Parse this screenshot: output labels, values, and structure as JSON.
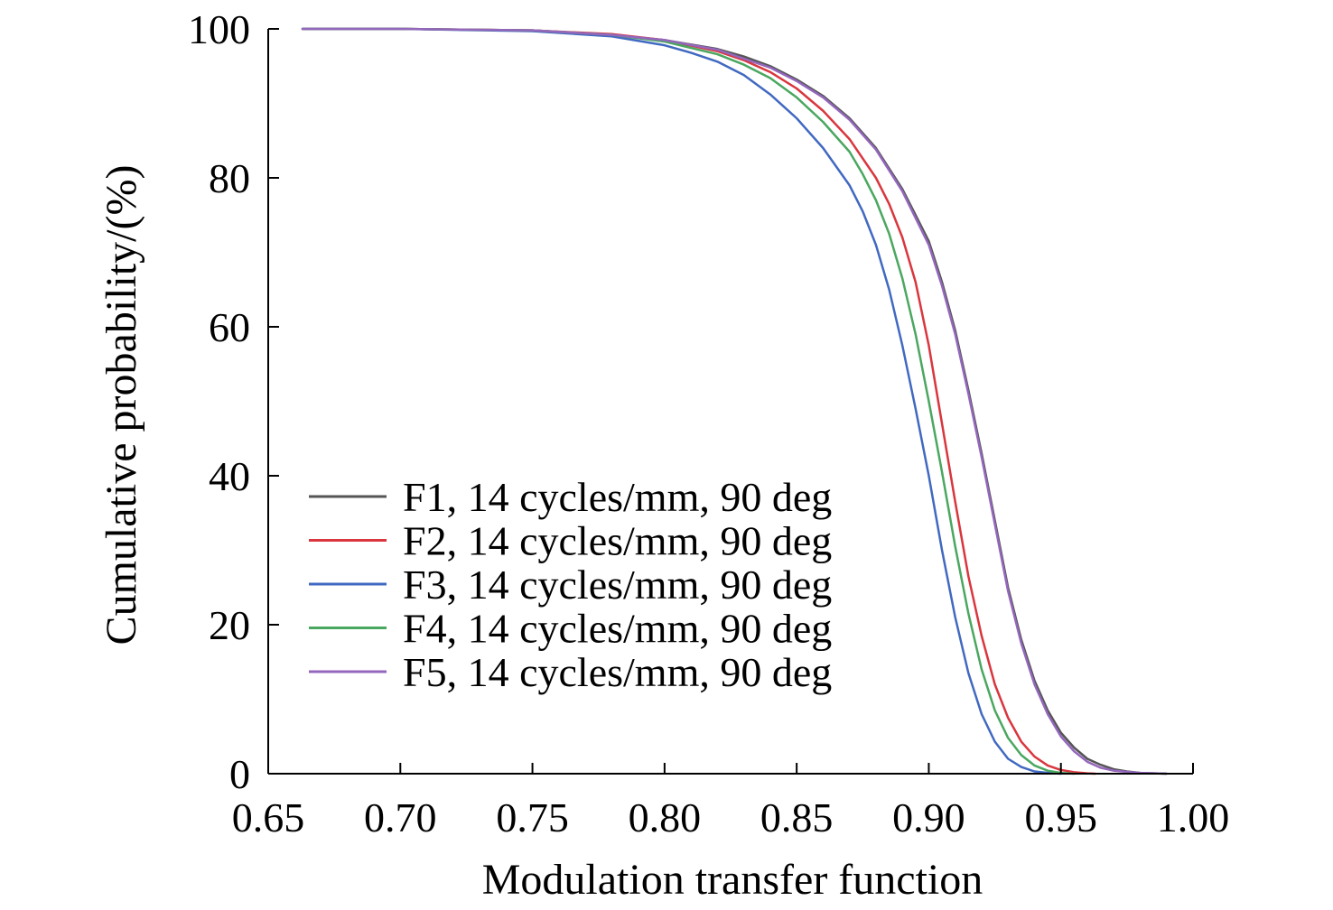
{
  "chart_data": {
    "type": "line",
    "title": "",
    "xlabel": "Modulation transfer function",
    "ylabel": "Cumulative probability/(%)",
    "xlim": [
      0.65,
      1.0
    ],
    "ylim": [
      0,
      100
    ],
    "x_ticks": [
      "0.65",
      "0.70",
      "0.75",
      "0.80",
      "0.85",
      "0.90",
      "0.95",
      "1.00"
    ],
    "y_ticks": [
      "0",
      "20",
      "40",
      "60",
      "80",
      "100"
    ],
    "grid": false,
    "legend_position": "lower-left",
    "series": [
      {
        "name": "F1, 14 cycles/mm, 90 deg",
        "color": "#555555",
        "x": [
          0.663,
          0.7,
          0.75,
          0.78,
          0.8,
          0.82,
          0.83,
          0.84,
          0.85,
          0.86,
          0.87,
          0.88,
          0.89,
          0.9,
          0.905,
          0.91,
          0.915,
          0.92,
          0.925,
          0.93,
          0.935,
          0.94,
          0.945,
          0.95,
          0.955,
          0.96,
          0.965,
          0.97,
          0.975,
          0.98,
          0.99
        ],
        "y": [
          100,
          100,
          99.8,
          99.2,
          98.5,
          97.3,
          96.3,
          95.0,
          93.2,
          91.0,
          88.0,
          84.0,
          78.5,
          71.5,
          66.0,
          59.5,
          51.5,
          43.0,
          34.0,
          25.0,
          18.0,
          12.5,
          8.5,
          5.5,
          3.5,
          2.0,
          1.2,
          0.6,
          0.3,
          0.1,
          0
        ]
      },
      {
        "name": "F2, 14 cycles/mm, 90 deg",
        "color": "#d9363e",
        "x": [
          0.663,
          0.7,
          0.75,
          0.78,
          0.8,
          0.82,
          0.83,
          0.84,
          0.85,
          0.86,
          0.87,
          0.88,
          0.885,
          0.89,
          0.895,
          0.9,
          0.905,
          0.91,
          0.915,
          0.92,
          0.925,
          0.93,
          0.935,
          0.94,
          0.945,
          0.95,
          0.955,
          0.96,
          0.963
        ],
        "y": [
          100,
          100,
          99.8,
          99.3,
          98.5,
          97.0,
          95.8,
          94.2,
          92.0,
          89.0,
          85.2,
          80.0,
          76.5,
          72.0,
          66.0,
          57.5,
          47.0,
          36.5,
          26.5,
          18.5,
          12.0,
          7.5,
          4.3,
          2.3,
          1.1,
          0.5,
          0.2,
          0.05,
          0
        ]
      },
      {
        "name": "F3, 14 cycles/mm, 90 deg",
        "color": "#4169c1",
        "x": [
          0.663,
          0.7,
          0.75,
          0.78,
          0.8,
          0.81,
          0.82,
          0.83,
          0.84,
          0.85,
          0.86,
          0.87,
          0.875,
          0.88,
          0.885,
          0.89,
          0.895,
          0.9,
          0.905,
          0.91,
          0.915,
          0.92,
          0.925,
          0.93,
          0.935,
          0.94,
          0.945,
          0.95
        ],
        "y": [
          100,
          100,
          99.7,
          99.0,
          97.8,
          96.8,
          95.6,
          93.8,
          91.2,
          88.0,
          84.0,
          79.0,
          75.5,
          71.0,
          65.0,
          57.5,
          49.0,
          40.0,
          30.0,
          21.0,
          13.5,
          8.0,
          4.3,
          2.0,
          0.9,
          0.3,
          0.1,
          0
        ]
      },
      {
        "name": "F4, 14 cycles/mm, 90 deg",
        "color": "#4aa760",
        "x": [
          0.663,
          0.7,
          0.75,
          0.78,
          0.8,
          0.82,
          0.83,
          0.84,
          0.85,
          0.86,
          0.87,
          0.875,
          0.88,
          0.885,
          0.89,
          0.895,
          0.9,
          0.905,
          0.91,
          0.915,
          0.92,
          0.925,
          0.93,
          0.935,
          0.94,
          0.945,
          0.95,
          0.955
        ],
        "y": [
          100,
          100,
          99.8,
          99.2,
          98.3,
          96.6,
          95.2,
          93.4,
          90.8,
          87.5,
          83.5,
          80.5,
          77.0,
          72.5,
          66.5,
          59.0,
          50.0,
          40.5,
          30.5,
          21.5,
          14.0,
          8.5,
          4.8,
          2.5,
          1.1,
          0.4,
          0.1,
          0
        ]
      },
      {
        "name": "F5, 14 cycles/mm, 90 deg",
        "color": "#9467bd",
        "x": [
          0.663,
          0.7,
          0.75,
          0.78,
          0.8,
          0.82,
          0.83,
          0.84,
          0.85,
          0.86,
          0.87,
          0.88,
          0.89,
          0.9,
          0.905,
          0.91,
          0.915,
          0.92,
          0.925,
          0.93,
          0.935,
          0.94,
          0.945,
          0.95,
          0.955,
          0.96,
          0.965,
          0.97,
          0.98,
          0.99
        ],
        "y": [
          100,
          100,
          99.8,
          99.2,
          98.5,
          97.2,
          96.0,
          94.8,
          93.0,
          90.8,
          87.8,
          83.8,
          78.2,
          71.0,
          65.5,
          59.0,
          51.0,
          42.5,
          33.5,
          24.5,
          17.5,
          12.0,
          8.0,
          5.0,
          3.0,
          1.6,
          0.8,
          0.4,
          0.1,
          0
        ]
      }
    ]
  }
}
